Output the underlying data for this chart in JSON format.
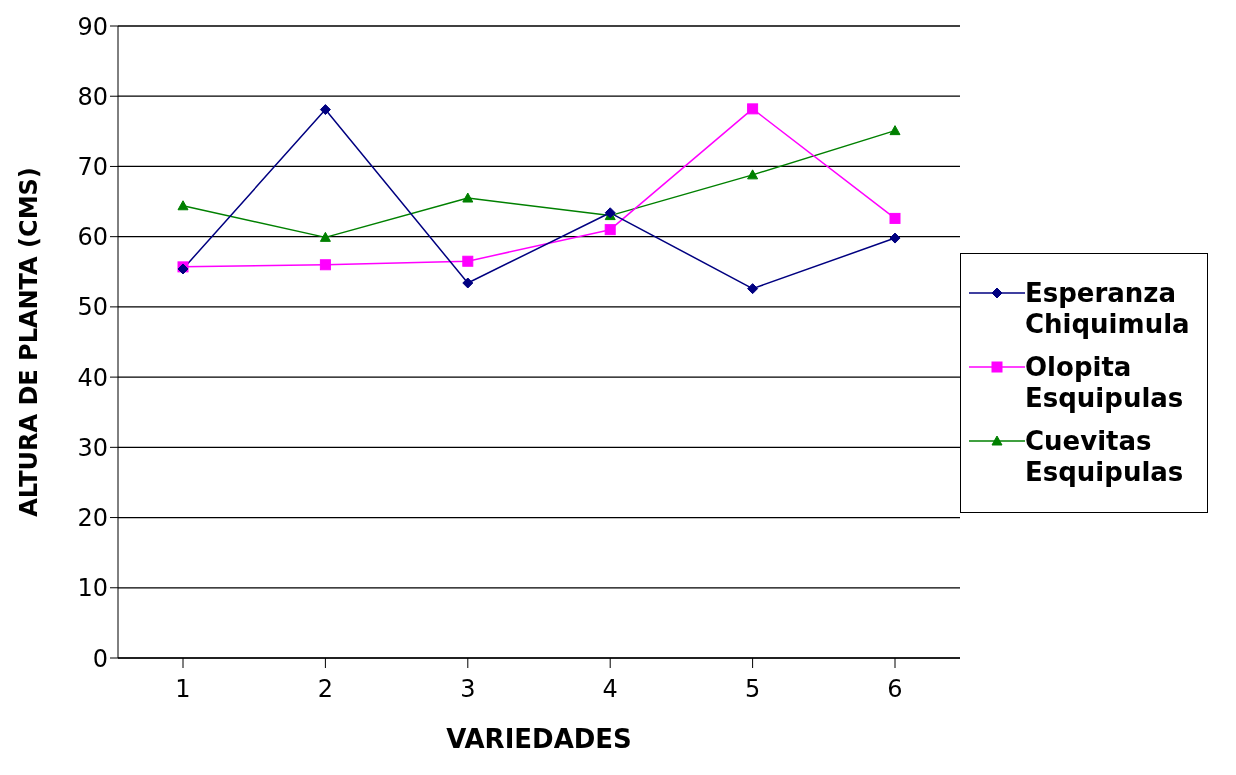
{
  "chart_data": {
    "type": "line",
    "xlabel": "VARIEDADES",
    "ylabel": "ALTURA DE PLANTA (CMS)",
    "categories": [
      "1",
      "2",
      "3",
      "4",
      "5",
      "6"
    ],
    "ylim": [
      0,
      90
    ],
    "yticks": [
      0,
      10,
      20,
      30,
      40,
      50,
      60,
      70,
      80,
      90
    ],
    "grid": "y",
    "legend": "right",
    "series": [
      {
        "name": "Esperanza Chiquimula",
        "color": "#000080",
        "marker": "diamond",
        "values": [
          55.4,
          78.1,
          53.4,
          63.4,
          52.6,
          59.8
        ]
      },
      {
        "name": "Olopita Esquipulas",
        "color": "#ff00ff",
        "marker": "square",
        "values": [
          55.7,
          56.0,
          56.5,
          61.0,
          78.2,
          62.6
        ]
      },
      {
        "name": "Cuevitas Esquipulas",
        "color": "#008000",
        "marker": "triangle",
        "values": [
          64.4,
          59.9,
          65.5,
          63.0,
          68.8,
          75.1
        ]
      }
    ]
  }
}
